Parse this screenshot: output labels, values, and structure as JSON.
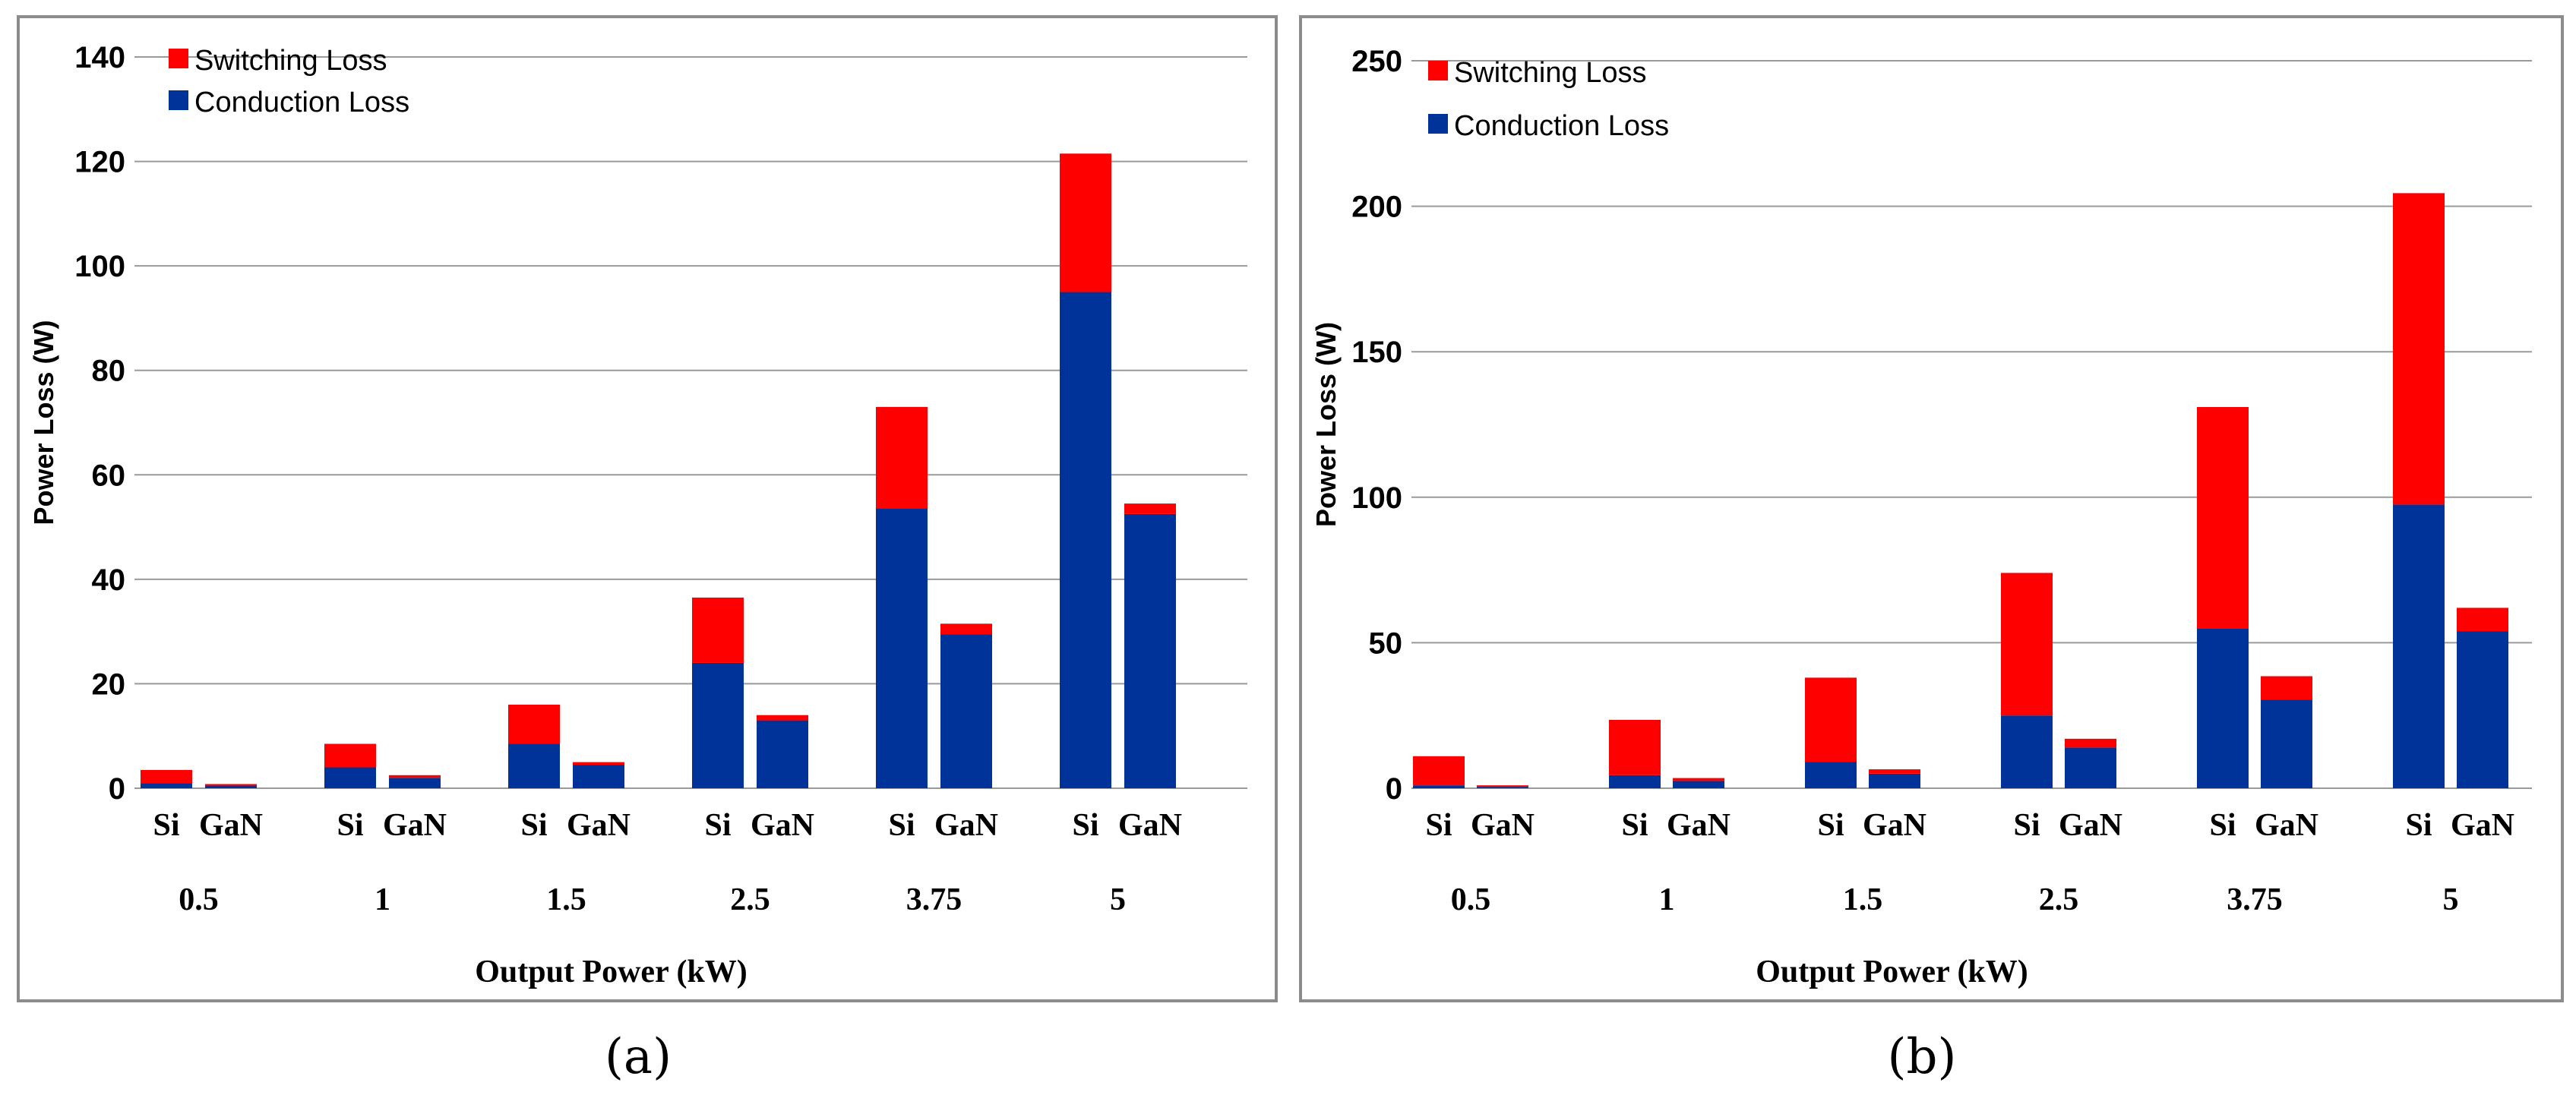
{
  "colors": {
    "switching": "#ff0000",
    "conduction": "#003399"
  },
  "chart_data": [
    {
      "type": "bar",
      "stacked": true,
      "title": "",
      "xlabel": "Output Power (kW)",
      "ylabel": "Power Loss (W)",
      "ylim": [
        0,
        140
      ],
      "yticks": [
        0,
        20,
        40,
        60,
        80,
        100,
        120,
        140
      ],
      "categories": [
        "0.5",
        "1",
        "1.5",
        "2.5",
        "3.75",
        "5"
      ],
      "devices": [
        "Si",
        "GaN"
      ],
      "legend": {
        "switching": "Switching Loss",
        "conduction": "Conduction Loss"
      },
      "series": [
        {
          "name": "Conduction Loss",
          "Si": [
            1,
            4,
            8.5,
            24,
            53.5,
            95
          ],
          "GaN": [
            0.5,
            2,
            4.5,
            13,
            29.5,
            52.5
          ]
        },
        {
          "name": "Switching Loss",
          "Si": [
            2.5,
            4.5,
            7.5,
            12.5,
            19.5,
            26.5
          ],
          "GaN": [
            0.3,
            0.5,
            0.5,
            1,
            2,
            2
          ]
        }
      ],
      "caption": "(a)"
    },
    {
      "type": "bar",
      "stacked": true,
      "title": "",
      "xlabel": "Output Power (kW)",
      "ylabel": "Power Loss (W)",
      "ylim": [
        0,
        250
      ],
      "yticks": [
        0,
        50,
        100,
        150,
        200,
        250
      ],
      "categories": [
        "0.5",
        "1",
        "1.5",
        "2.5",
        "3.75",
        "5"
      ],
      "devices": [
        "Si",
        "GaN"
      ],
      "legend": {
        "switching": "Switching Loss",
        "conduction": "Conduction Loss"
      },
      "series": [
        {
          "name": "Conduction Loss",
          "Si": [
            1,
            4.5,
            9,
            25,
            55,
            97.5
          ],
          "GaN": [
            0.5,
            2.5,
            5,
            14,
            30.5,
            54
          ]
        },
        {
          "name": "Switching Loss",
          "Si": [
            10,
            19,
            29,
            49,
            76,
            107
          ],
          "GaN": [
            0.5,
            1,
            1.5,
            3,
            8,
            8
          ]
        }
      ],
      "caption": "(b)"
    }
  ]
}
